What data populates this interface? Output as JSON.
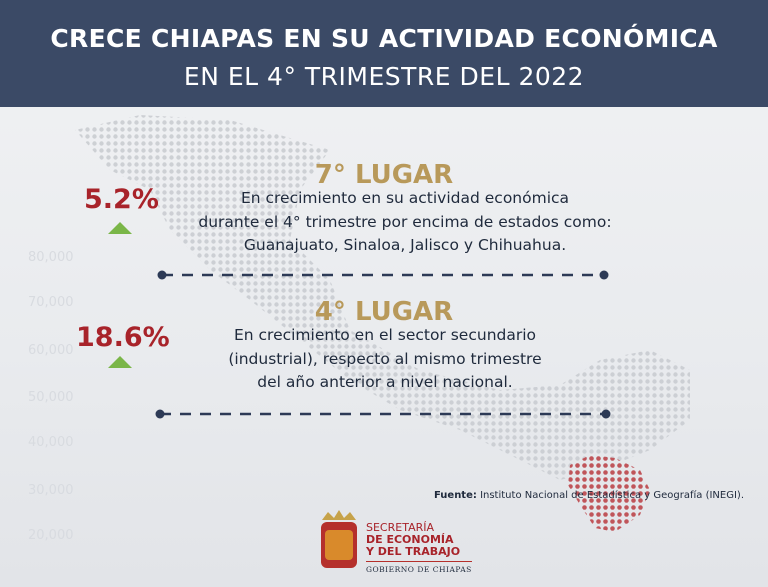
{
  "header": {
    "title": "CRECE CHIAPAS EN SU ACTIVIDAD ECONÓMICA",
    "subtitle": "EN EL 4° TRIMESTRE DEL 2022"
  },
  "background_numbers": [
    "80,000",
    "70,000",
    "60,000",
    "50,000",
    "40,000",
    "30,000",
    "20,000"
  ],
  "items": [
    {
      "percent": "5.2%",
      "rank": "7° LUGAR",
      "lines": [
        "En crecimiento en su actividad económica",
        "durante el 4° trimestre por encima de estados como:",
        "Guanajuato, Sinaloa, Jalisco y Chihuahua."
      ]
    },
    {
      "percent": "18.6%",
      "rank": "4° LUGAR",
      "lines": [
        "En crecimiento en el sector secundario",
        "(industrial), respecto al mismo trimestre",
        "del año anterior a nivel nacional."
      ]
    }
  ],
  "source": {
    "label": "Fuente:",
    "text": "Instituto Nacional de Estadística y Geografía (INEGI)."
  },
  "logo": {
    "lines": [
      "SECRETARÍA",
      "DE ECONOMÍA",
      "Y DEL TRABAJO"
    ],
    "footer": "GOBIERNO DE CHIAPAS"
  }
}
